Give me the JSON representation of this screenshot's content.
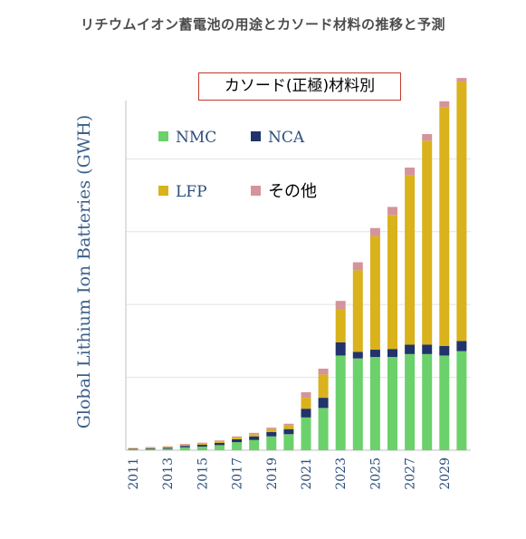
{
  "page": {
    "title": "リチウムイオン蓄電池の用途とカソード材料の推移と予測"
  },
  "chart_data": {
    "type": "bar",
    "stacked": true,
    "title": "カソード(正極)材料別",
    "ylabel": "Global Lithium Ion Batteries (GWH)",
    "xlabel": "",
    "categories": [
      "2011",
      "2012",
      "2013",
      "2014",
      "2015",
      "2016",
      "2017",
      "2018",
      "2019",
      "2020",
      "2021",
      "2022",
      "2023",
      "2024",
      "2025",
      "2026",
      "2027",
      "2028",
      "2029",
      "2030"
    ],
    "x_tick_labels": [
      "2011",
      "2013",
      "2015",
      "2017",
      "2019",
      "2021",
      "2023",
      "2025",
      "2027",
      "2029"
    ],
    "y_tick_labels_shown": false,
    "ylim": [
      0,
      2400
    ],
    "gridlines": [
      500,
      1000,
      1500,
      2000
    ],
    "grid": true,
    "legend_position": "top-left",
    "series": [
      {
        "name": "NMC",
        "color": "#6bd16b",
        "values": [
          5,
          8,
          10,
          20,
          25,
          35,
          55,
          70,
          95,
          110,
          225,
          290,
          650,
          630,
          640,
          640,
          660,
          660,
          650,
          680
        ]
      },
      {
        "name": "NCA",
        "color": "#22336b",
        "values": [
          4,
          5,
          7,
          10,
          12,
          15,
          20,
          25,
          30,
          35,
          60,
          70,
          90,
          45,
          50,
          55,
          65,
          65,
          65,
          70
        ]
      },
      {
        "name": "LFP",
        "color": "#d9b21c",
        "values": [
          4,
          5,
          6,
          8,
          9,
          11,
          13,
          15,
          20,
          25,
          75,
          160,
          230,
          560,
          780,
          920,
          1160,
          1400,
          1640,
          1780
        ]
      },
      {
        "name": "その他",
        "color": "#d4949a",
        "values": [
          3,
          4,
          4,
          5,
          6,
          6,
          7,
          9,
          10,
          12,
          38,
          40,
          55,
          55,
          55,
          55,
          55,
          45,
          40,
          25
        ]
      }
    ]
  }
}
